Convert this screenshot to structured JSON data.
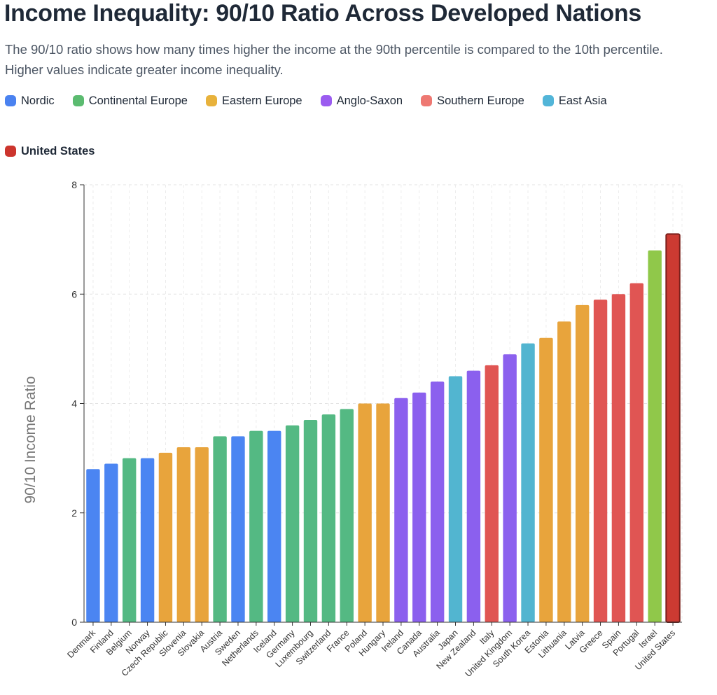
{
  "title": "Income Inequality: 90/10 Ratio Across Developed Nations",
  "subtitle": "The 90/10 ratio shows how many times higher the income at the 90th percentile is compared to the 10th percentile. Higher values indicate greater income inequality.",
  "legend": [
    {
      "name": "Nordic",
      "color": "#4a82f0"
    },
    {
      "name": "Continental Europe",
      "color": "#5bbb70"
    },
    {
      "name": "Eastern Europe",
      "color": "#e8b23c"
    },
    {
      "name": "Anglo-Saxon",
      "color": "#9b5cf0"
    },
    {
      "name": "Southern Europe",
      "color": "#ee7872"
    },
    {
      "name": "East Asia",
      "color": "#52b5d8"
    },
    {
      "name": "United States",
      "color": "#cc352d",
      "bold": true
    }
  ],
  "chart_data": {
    "type": "bar",
    "title": "",
    "xlabel": "",
    "ylabel": "90/10 Income Ratio",
    "ylim": [
      0,
      8
    ],
    "yticks": [
      0,
      2,
      4,
      6,
      8
    ],
    "grid": true,
    "categories": [
      "Denmark",
      "Finland",
      "Belgium",
      "Norway",
      "Czech Republic",
      "Slovenia",
      "Slovakia",
      "Austria",
      "Sweden",
      "Netherlands",
      "Iceland",
      "Germany",
      "Luxembourg",
      "Switzerland",
      "France",
      "Poland",
      "Hungary",
      "Ireland",
      "Canada",
      "Australia",
      "Japan",
      "New Zealand",
      "Italy",
      "United Kingdom",
      "South Korea",
      "Estonia",
      "Lithuania",
      "Latvia",
      "Greece",
      "Spain",
      "Portugal",
      "Israel",
      "United States"
    ],
    "values": [
      2.8,
      2.9,
      3.0,
      3.0,
      3.1,
      3.2,
      3.2,
      3.4,
      3.4,
      3.5,
      3.5,
      3.6,
      3.7,
      3.8,
      3.9,
      4.0,
      4.0,
      4.1,
      4.2,
      4.4,
      4.5,
      4.6,
      4.7,
      4.9,
      5.1,
      5.2,
      5.5,
      5.8,
      5.9,
      6.0,
      6.2,
      6.8,
      7.1
    ],
    "colors": [
      "#4b85f2",
      "#4b85f2",
      "#54b983",
      "#4b85f2",
      "#e8a43c",
      "#e8a43c",
      "#e8a43c",
      "#54b983",
      "#4b85f2",
      "#54b983",
      "#4b85f2",
      "#54b983",
      "#54b983",
      "#54b983",
      "#54b983",
      "#e8a43c",
      "#e8a43c",
      "#8b60ee",
      "#8b60ee",
      "#8b60ee",
      "#52b5d0",
      "#8b60ee",
      "#e05553",
      "#8b60ee",
      "#52b5d0",
      "#e8a43c",
      "#e8a43c",
      "#e8a43c",
      "#e05553",
      "#e05553",
      "#e05553",
      "#90c84a",
      "#cc3a32"
    ],
    "highlight": "United States"
  }
}
